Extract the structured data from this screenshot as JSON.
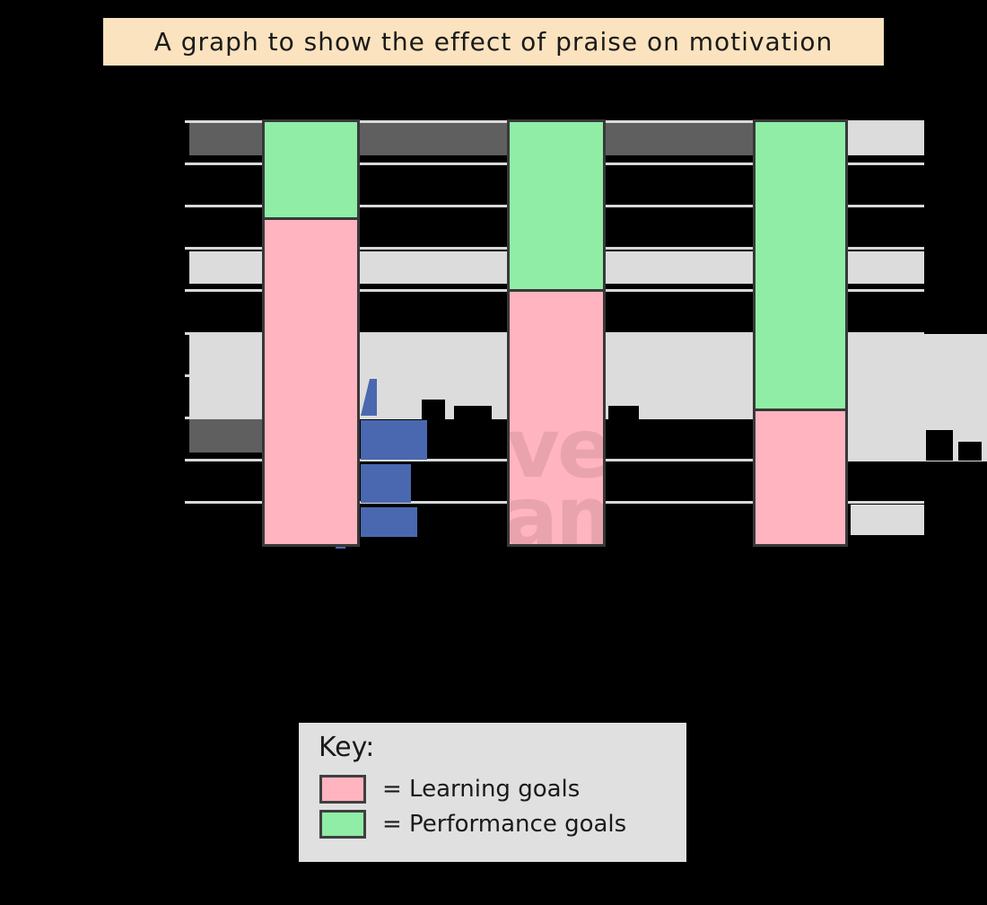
{
  "title": {
    "text": "A graph to show the effect of praise on motivation"
  },
  "watermark": {
    "logo": "savemyexams-bolt-logo",
    "line1": "veM",
    "line2": "am"
  },
  "key": {
    "heading": "Key:",
    "items": [
      {
        "label": "= Learning goals",
        "swatch_color": "#FFB4BF"
      },
      {
        "label": "=  Performance goals",
        "swatch_color": "#8FEDA6"
      }
    ]
  },
  "colors": {
    "background": "#000000",
    "title_box": "#FAE3BE",
    "key_box": "#E0E0E0",
    "learning_goals_pink": "#FFB4BF",
    "performance_goals_green": "#8FEDA6",
    "gridline": "#D9D9D9",
    "highlight_band_light": "#DCDCDC",
    "highlight_band_dark": "#5F5F5F",
    "logo_blue": "#4A68B0",
    "bar_border": "#383838"
  },
  "chart_data": {
    "type": "bar",
    "stacked": true,
    "title": "A graph to show the effect of praise on motivation",
    "categories": [
      "",
      "",
      ""
    ],
    "series": [
      {
        "name": "Learning goals",
        "color": "#FFB4BF",
        "values": [
          77,
          60,
          32
        ]
      },
      {
        "name": "Performance goals",
        "color": "#8FEDA6",
        "values": [
          23,
          40,
          68
        ]
      }
    ],
    "ylim": [
      0,
      100
    ],
    "gridline_step": 10,
    "grid": true,
    "legend_position": "bottom",
    "axis_tick_labels_visible": false
  }
}
